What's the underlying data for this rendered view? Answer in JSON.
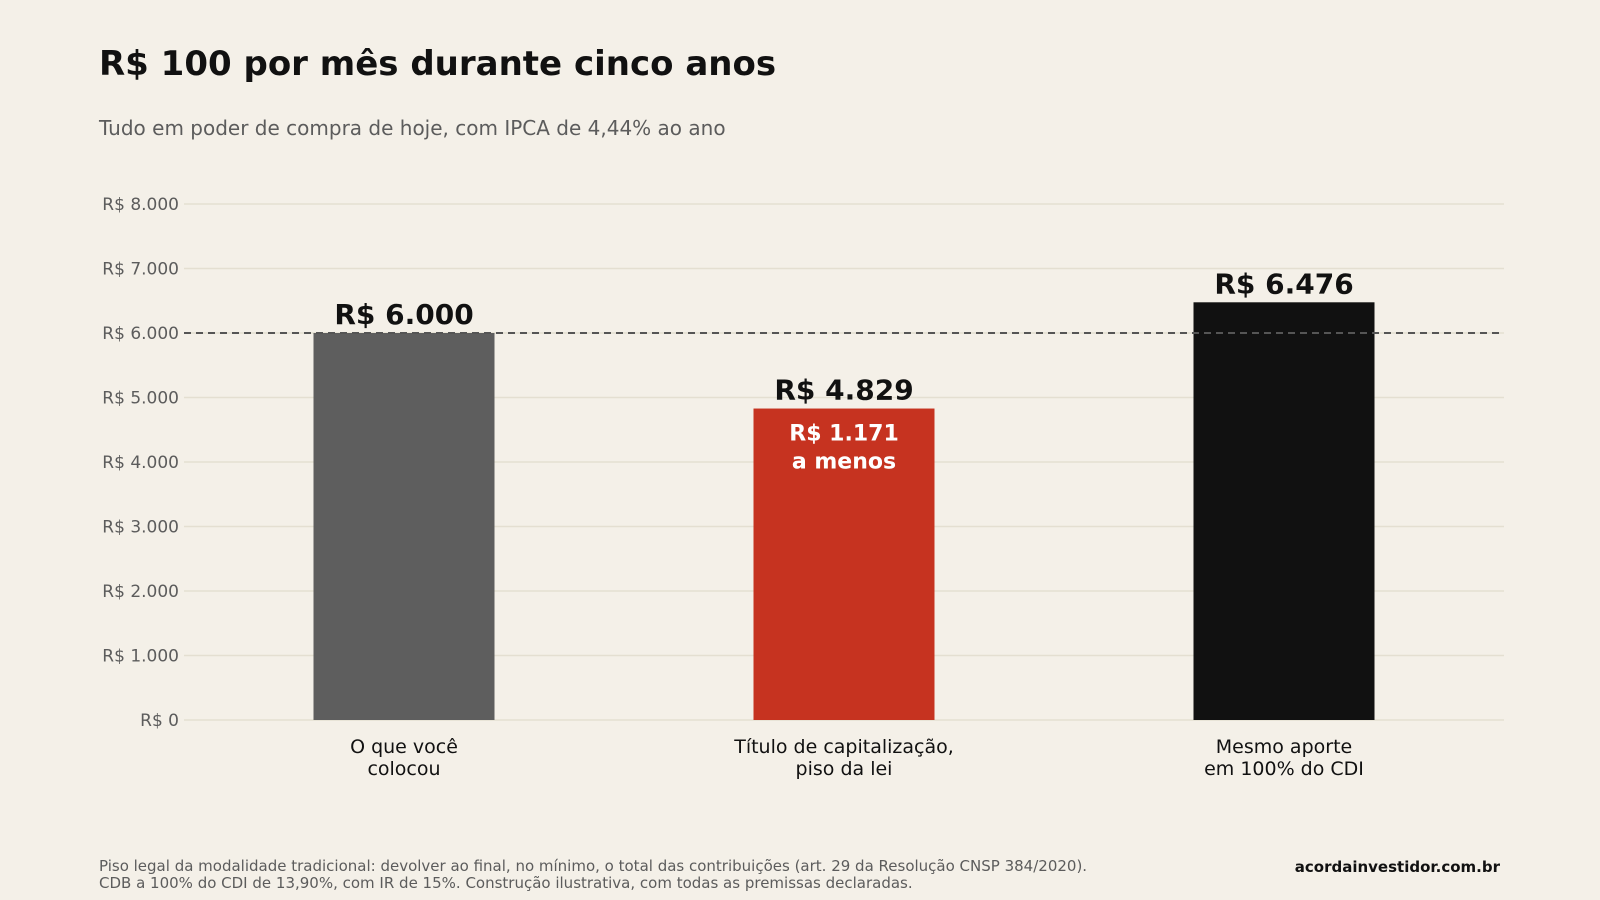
{
  "header": {
    "title": "R$ 100 por mês durante cinco anos",
    "subtitle": "Tudo em poder de compra de hoje, com IPCA de 4,44% ao ano"
  },
  "footer": {
    "note_line1": "Piso legal da modalidade tradicional: devolver ao final, no mínimo, o total das contribuições (art. 29 da Resolução CNSP 384/2020).",
    "note_line2": "CDB a 100% do CDI de 13,90%, com IR de 15%. Construção ilustrativa, com todas as premissas declaradas.",
    "site": "acordainvestidor.com.br"
  },
  "chart_data": {
    "type": "bar",
    "categories": [
      [
        "O que você",
        "colocou"
      ],
      [
        "Título de capitalização,",
        "piso da lei"
      ],
      [
        "Mesmo aporte",
        "em 100% do CDI"
      ]
    ],
    "values": [
      6000,
      4829,
      6476
    ],
    "value_labels": [
      "R$ 6.000",
      "R$ 4.829",
      "R$ 6.476"
    ],
    "colors": [
      "#5e5e5e",
      "#c63320",
      "#111111"
    ],
    "ylim": [
      0,
      8000
    ],
    "yticks": [
      0,
      1000,
      2000,
      3000,
      4000,
      5000,
      6000,
      7000,
      8000
    ],
    "ytick_labels": [
      "R$ 0",
      "R$ 1.000",
      "R$ 2.000",
      "R$ 3.000",
      "R$ 4.000",
      "R$ 5.000",
      "R$ 6.000",
      "R$ 7.000",
      "R$ 8.000"
    ],
    "reference_line": 6000,
    "annotation": {
      "bar_index": 1,
      "lines": [
        "R$ 1.171",
        "a menos"
      ]
    },
    "grid": true
  }
}
